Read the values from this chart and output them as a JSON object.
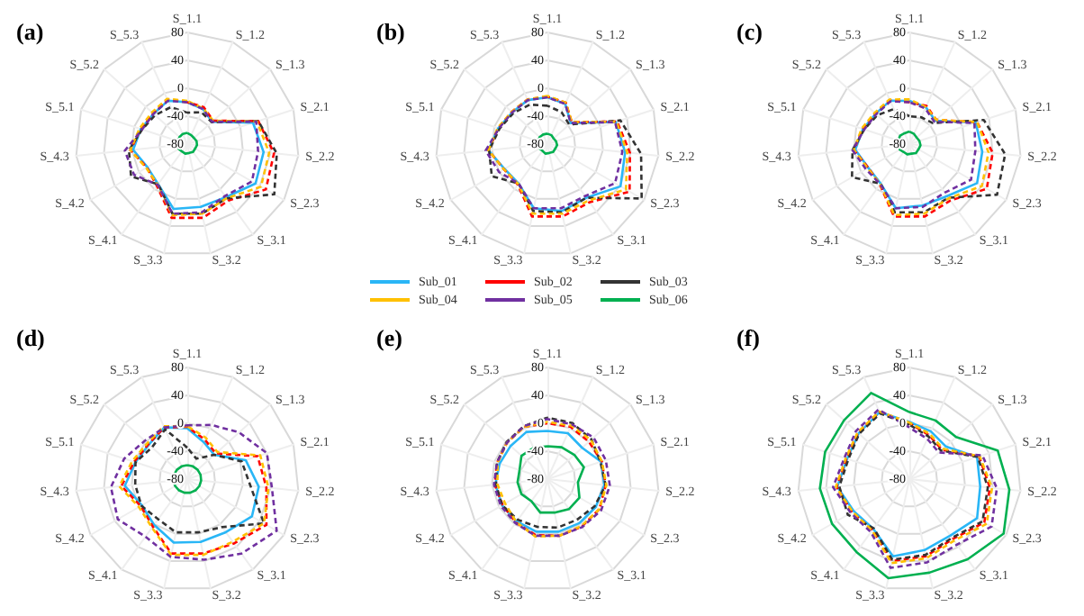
{
  "chart_data": [
    {
      "type": "radar",
      "title": "(a)",
      "categories": [
        "S_1.1",
        "S_1.2",
        "S_1.3",
        "S_2.1",
        "S_2.2",
        "S_2.3",
        "S_3.1",
        "S_3.2",
        "S_3.3",
        "S_4.1",
        "S_4.2",
        "S_4.3",
        "S_5.1",
        "S_5.2",
        "S_5.3"
      ],
      "ylim": [
        -80,
        80
      ],
      "yticks": [
        -80,
        -40,
        0,
        40,
        80
      ],
      "grid": true,
      "marker": "none",
      "series": [
        {
          "color": "#29b6f6",
          "line_style": "solid",
          "values": [
            -20,
            -25,
            -32,
            19,
            30,
            33,
            14,
            12,
            15,
            -9,
            -14,
            -2,
            -10,
            -15,
            -12
          ]
        },
        {
          "color": "#ff0000",
          "line_style": "dashed",
          "values": [
            -20,
            -22,
            -30,
            27,
            45,
            50,
            20,
            28,
            28,
            -6,
            -13,
            2,
            -10,
            -14,
            -10
          ]
        },
        {
          "color": "#333333",
          "line_style": "dashed",
          "values": [
            -35,
            -30,
            -33,
            27,
            49,
            64,
            16,
            22,
            22,
            -9,
            13,
            4,
            -12,
            -18,
            -22
          ]
        },
        {
          "color": "#ffc000",
          "line_style": "dashed",
          "values": [
            -18,
            -24,
            -30,
            25,
            38,
            42,
            16,
            22,
            24,
            -8,
            -12,
            2,
            -8,
            -12,
            -9
          ]
        },
        {
          "color": "#7030a0",
          "line_style": "dashed",
          "values": [
            -20,
            -25,
            -32,
            24,
            22,
            27,
            12,
            20,
            22,
            -8,
            8,
            10,
            -12,
            -15,
            -12
          ]
        },
        {
          "color": "#00b050",
          "line_style": "solid",
          "values": [
            -64,
            -66,
            -67,
            -66,
            -66,
            -67,
            -66,
            -67,
            -66,
            -67,
            -66,
            -68,
            -66,
            -65,
            -64
          ]
        }
      ]
    },
    {
      "type": "radar",
      "title": "(b)",
      "legend": "bottom",
      "categories": [
        "S_1.1",
        "S_1.2",
        "S_1.3",
        "S_2.1",
        "S_2.2",
        "S_2.3",
        "S_3.1",
        "S_3.2",
        "S_3.3",
        "S_4.1",
        "S_4.2",
        "S_4.3",
        "S_5.1",
        "S_5.2",
        "S_5.3"
      ],
      "ylim": [
        -80,
        80
      ],
      "yticks": [
        -80,
        -40,
        0,
        40,
        80
      ],
      "grid": true,
      "marker": "none",
      "series": [
        {
          "name": "Sub_01",
          "color": "#29b6f6",
          "line_style": "solid",
          "values": [
            -13,
            -17,
            -35,
            23,
            32,
            41,
            15,
            18,
            14,
            -10,
            -9,
            5,
            -6,
            -12,
            -11
          ]
        },
        {
          "name": "Sub_02",
          "color": "#ff0000",
          "line_style": "dashed",
          "values": [
            -12,
            -15,
            -33,
            25,
            39,
            56,
            23,
            26,
            26,
            -8,
            -8,
            5,
            -6,
            -11,
            -10
          ]
        },
        {
          "name": "Sub_03",
          "color": "#333333",
          "line_style": "dashed",
          "values": [
            -25,
            -30,
            -38,
            30,
            55,
            76,
            15,
            20,
            18,
            -10,
            12,
            4,
            -8,
            -14,
            -18
          ]
        },
        {
          "name": "Sub_04",
          "color": "#ffc000",
          "line_style": "dashed",
          "values": [
            -11,
            -15,
            -33,
            24,
            35,
            50,
            20,
            22,
            22,
            -9,
            -8,
            5,
            -5,
            -11,
            -10
          ]
        },
        {
          "name": "Sub_05",
          "color": "#7030a0",
          "line_style": "dashed",
          "values": [
            -13,
            -17,
            -35,
            22,
            28,
            32,
            12,
            14,
            14,
            -10,
            0,
            9,
            -7,
            -12,
            -11
          ]
        },
        {
          "name": "Sub_06",
          "color": "#00b050",
          "line_style": "solid",
          "values": [
            -65,
            -66,
            -68,
            -67,
            -66,
            -67,
            -66,
            -67,
            -66,
            -68,
            -67,
            -67,
            -66,
            -65,
            -65
          ]
        }
      ]
    },
    {
      "type": "radar",
      "title": "(c)",
      "categories": [
        "S_1.1",
        "S_1.2",
        "S_1.3",
        "S_2.1",
        "S_2.2",
        "S_2.3",
        "S_3.1",
        "S_3.2",
        "S_3.3",
        "S_4.1",
        "S_4.2",
        "S_4.3",
        "S_5.1",
        "S_5.2",
        "S_5.3"
      ],
      "ylim": [
        -80,
        80
      ],
      "yticks": [
        -80,
        -40,
        0,
        40,
        80
      ],
      "grid": true,
      "marker": "none",
      "series": [
        {
          "color": "#29b6f6",
          "line_style": "solid",
          "values": [
            -18,
            -22,
            -30,
            20,
            25,
            32,
            12,
            10,
            14,
            -10,
            -12,
            -2,
            -10,
            -15,
            -12
          ]
        },
        {
          "color": "#ff0000",
          "line_style": "dashed",
          "values": [
            -20,
            -20,
            -28,
            22,
            40,
            48,
            20,
            26,
            26,
            -8,
            -12,
            0,
            -10,
            -14,
            -11
          ]
        },
        {
          "color": "#333333",
          "line_style": "dashed",
          "values": [
            -40,
            -38,
            -35,
            32,
            58,
            65,
            15,
            20,
            20,
            -10,
            15,
            2,
            -12,
            -18,
            -25
          ]
        },
        {
          "color": "#ffc000",
          "line_style": "dashed",
          "values": [
            -16,
            -22,
            -28,
            22,
            34,
            40,
            16,
            22,
            24,
            -9,
            -11,
            0,
            -8,
            -13,
            -10
          ]
        },
        {
          "color": "#7030a0",
          "line_style": "dashed",
          "values": [
            -20,
            -24,
            -32,
            18,
            15,
            22,
            6,
            12,
            14,
            -9,
            -8,
            2,
            -12,
            -16,
            -13
          ]
        },
        {
          "color": "#00b050",
          "line_style": "solid",
          "values": [
            -62,
            -64,
            -66,
            -65,
            -64,
            -65,
            -64,
            -66,
            -65,
            -66,
            -64,
            -65,
            -63,
            -62,
            -63
          ]
        }
      ]
    },
    {
      "type": "radar",
      "title": "(d)",
      "categories": [
        "S_1.1",
        "S_1.2",
        "S_1.3",
        "S_2.1",
        "S_2.2",
        "S_2.3",
        "S_3.1",
        "S_3.2",
        "S_3.3",
        "S_4.1",
        "S_4.2",
        "S_4.3",
        "S_5.1",
        "S_5.2",
        "S_5.3"
      ],
      "ylim": [
        -80,
        80
      ],
      "yticks": [
        -80,
        -40,
        0,
        40,
        80
      ],
      "grid": true,
      "marker": "none",
      "series": [
        {
          "color": "#29b6f6",
          "line_style": "solid",
          "values": [
            -7,
            -22,
            -28,
            8,
            23,
            27,
            14,
            12,
            13,
            1,
            -5,
            10,
            -2,
            -6,
            1
          ]
        },
        {
          "color": "#ff0000",
          "line_style": "dashed",
          "values": [
            -5,
            -18,
            -25,
            26,
            34,
            51,
            34,
            29,
            29,
            4,
            -3,
            15,
            0,
            -5,
            1
          ]
        },
        {
          "color": "#333333",
          "line_style": "dashed",
          "values": [
            -35,
            -48,
            -28,
            2,
            11,
            47,
            5,
            -2,
            -2,
            -9,
            -4,
            -5,
            -2,
            -12,
            -2
          ]
        },
        {
          "color": "#ffc000",
          "line_style": "dashed",
          "values": [
            -4,
            -15,
            -22,
            30,
            37,
            47,
            31,
            31,
            31,
            6,
            0,
            18,
            3,
            -3,
            3
          ]
        },
        {
          "color": "#7030a0",
          "line_style": "dashed",
          "values": [
            -3,
            5,
            20,
            40,
            42,
            68,
            52,
            38,
            34,
            22,
            35,
            30,
            15,
            2,
            1
          ]
        },
        {
          "color": "#00b050",
          "line_style": "solid",
          "values": [
            -60,
            -60,
            -60,
            -60,
            -60,
            -60,
            -60,
            -60,
            -60,
            -60,
            -60,
            -60,
            -60,
            -60,
            -60
          ]
        }
      ]
    },
    {
      "type": "radar",
      "title": "(e)",
      "categories": [
        "S_1.1",
        "S_1.2",
        "S_1.3",
        "S_2.1",
        "S_2.2",
        "S_2.3",
        "S_3.1",
        "S_3.2",
        "S_3.3",
        "S_4.1",
        "S_4.2",
        "S_4.3",
        "S_5.1",
        "S_5.2",
        "S_5.3"
      ],
      "ylim": [
        -80,
        80
      ],
      "yticks": [
        -80,
        -40,
        0,
        40,
        80
      ],
      "grid": true,
      "marker": "none",
      "series": [
        {
          "color": "#29b6f6",
          "line_style": "solid",
          "values": [
            -11,
            -8,
            -13,
            1,
            2,
            0,
            -2,
            -3,
            -3,
            -5,
            -5,
            -5,
            -8,
            -9,
            -6
          ]
        },
        {
          "color": "#ff0000",
          "line_style": "dashed",
          "values": [
            0,
            2,
            0,
            2,
            4,
            6,
            4,
            3,
            2,
            -3,
            -6,
            -4,
            -4,
            -2,
            2
          ]
        },
        {
          "color": "#333333",
          "line_style": "dashed",
          "values": [
            8,
            8,
            5,
            0,
            4,
            -2,
            -8,
            -9,
            -10,
            -8,
            -5,
            -6,
            -4,
            -1,
            3
          ]
        },
        {
          "color": "#ffc000",
          "line_style": "dashed",
          "values": [
            2,
            4,
            4,
            2,
            5,
            6,
            3,
            3,
            4,
            -4,
            -10,
            -8,
            -5,
            -2,
            2
          ]
        },
        {
          "color": "#7030a0",
          "line_style": "dashed",
          "values": [
            6,
            6,
            9,
            8,
            10,
            9,
            5,
            3,
            3,
            -2,
            -3,
            -3,
            -4,
            -2,
            3
          ]
        },
        {
          "color": "#00b050",
          "line_style": "solid",
          "values": [
            -33,
            -30,
            -28,
            -25,
            -36,
            -27,
            -27,
            -31,
            -31,
            -41,
            -37,
            -37,
            -38,
            -30,
            -31
          ]
        }
      ]
    },
    {
      "type": "radar",
      "title": "(f)",
      "categories": [
        "S_1.1",
        "S_1.2",
        "S_1.3",
        "S_2.1",
        "S_2.2",
        "S_2.3",
        "S_3.1",
        "S_3.2",
        "S_3.3",
        "S_4.1",
        "S_4.2",
        "S_4.3",
        "S_5.1",
        "S_5.2",
        "S_5.3"
      ],
      "ylim": [
        -80,
        80
      ],
      "yticks": [
        -80,
        -40,
        0,
        40,
        80
      ],
      "grid": true,
      "marker": "none",
      "series": [
        {
          "color": "#29b6f6",
          "line_style": "solid",
          "values": [
            2,
            -5,
            -10,
            22,
            22,
            32,
            20,
            24,
            33,
            8,
            12,
            24,
            14,
            18,
            25
          ]
        },
        {
          "color": "#ff0000",
          "line_style": "dashed",
          "values": [
            0,
            -11,
            -17,
            25,
            36,
            44,
            26,
            33,
            40,
            10,
            15,
            25,
            15,
            19,
            25
          ]
        },
        {
          "color": "#333333",
          "line_style": "dashed",
          "values": [
            -2,
            -13,
            -19,
            23,
            33,
            41,
            24,
            31,
            38,
            7,
            22,
            21,
            12,
            17,
            23
          ]
        },
        {
          "color": "#ffc000",
          "line_style": "dashed",
          "values": [
            1,
            -9,
            -15,
            26,
            39,
            48,
            29,
            36,
            43,
            11,
            14,
            26,
            16,
            20,
            26
          ]
        },
        {
          "color": "#7030a0",
          "line_style": "dashed",
          "values": [
            -6,
            -17,
            -23,
            30,
            46,
            56,
            36,
            42,
            50,
            14,
            17,
            30,
            18,
            23,
            29
          ]
        },
        {
          "color": "#00b050",
          "line_style": "solid",
          "values": [
            16,
            12,
            10,
            53,
            64,
            76,
            62,
            57,
            65,
            49,
            48,
            49,
            47,
            46,
            55
          ]
        }
      ]
    }
  ]
}
